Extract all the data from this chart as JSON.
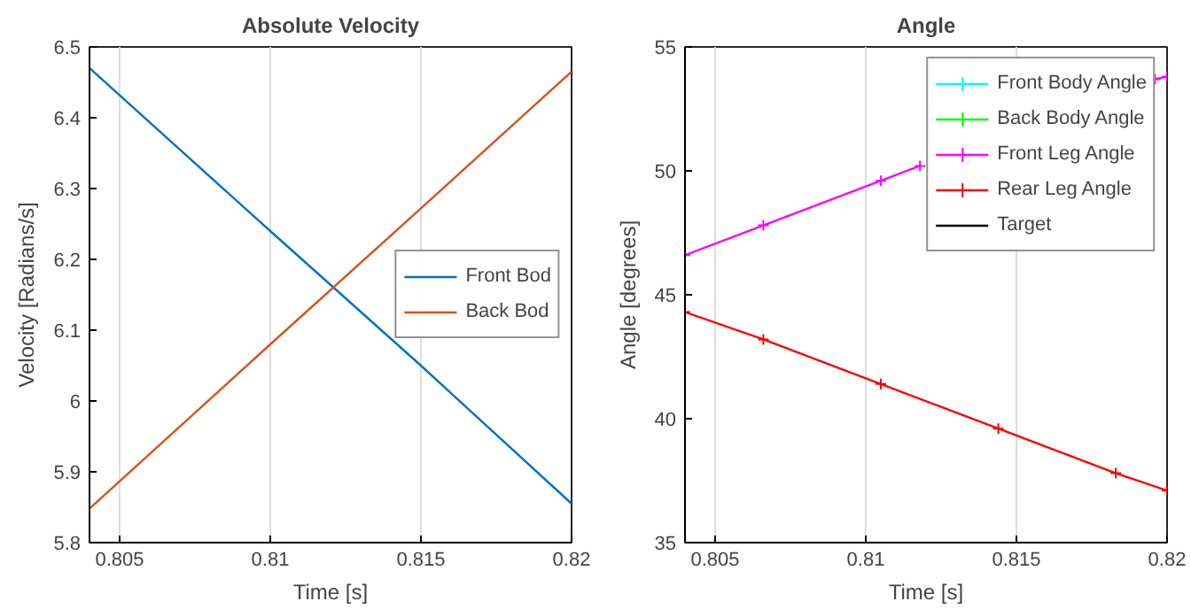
{
  "chart_data": [
    {
      "type": "line",
      "title": "Absolute Velocity",
      "xlabel": "Time [s]",
      "ylabel": "Velocity [Radians/s]",
      "xlim": [
        0.804,
        0.82
      ],
      "xticks": [
        0.805,
        0.81,
        0.815,
        0.82
      ],
      "ylim": [
        5.8,
        6.5
      ],
      "yticks": [
        5.8,
        5.9,
        6,
        6.1,
        6.2,
        6.3,
        6.4,
        6.5
      ],
      "grid": "x",
      "legend": "right",
      "series": [
        {
          "name": "Front Bod",
          "color": "#0072bd",
          "x": [
            0.804,
            0.81,
            0.815,
            0.82
          ],
          "values": [
            6.47,
            6.24,
            6.05,
            5.855
          ]
        },
        {
          "name": "Back Bod",
          "color": "#d95319",
          "x": [
            0.804,
            0.81,
            0.815,
            0.82
          ],
          "values": [
            5.848,
            6.08,
            6.272,
            6.465
          ]
        }
      ]
    },
    {
      "type": "line",
      "title": "Angle",
      "xlabel": "Time [s]",
      "ylabel": "Angle [degrees]",
      "xlim": [
        0.804,
        0.82
      ],
      "xticks": [
        0.805,
        0.81,
        0.815,
        0.82
      ],
      "ylim": [
        35,
        55
      ],
      "yticks": [
        35,
        40,
        45,
        50,
        55
      ],
      "grid": "x",
      "legend": "top right",
      "series": [
        {
          "name": "Front Body Angle",
          "color": "#00ffff",
          "marker": "cross"
        },
        {
          "name": "Back Body Angle",
          "color": "#00ff00",
          "marker": "cross"
        },
        {
          "name": "Front Leg Angle",
          "color": "#ff00ff",
          "marker": "cross",
          "x": [
            0.804,
            0.8066,
            0.8105,
            0.8118,
            0.816,
            0.8196,
            0.82
          ],
          "values": [
            46.6,
            47.8,
            49.6,
            50.2,
            null,
            53.7,
            53.8
          ]
        },
        {
          "name": "Rear Leg Angle",
          "color": "#ff0000",
          "marker": "cross",
          "x": [
            0.804,
            0.8066,
            0.8105,
            0.8144,
            0.8183,
            0.82
          ],
          "values": [
            44.3,
            43.2,
            41.4,
            39.6,
            37.8,
            37.1
          ]
        },
        {
          "name": "Target",
          "color": "#000000"
        }
      ]
    }
  ]
}
